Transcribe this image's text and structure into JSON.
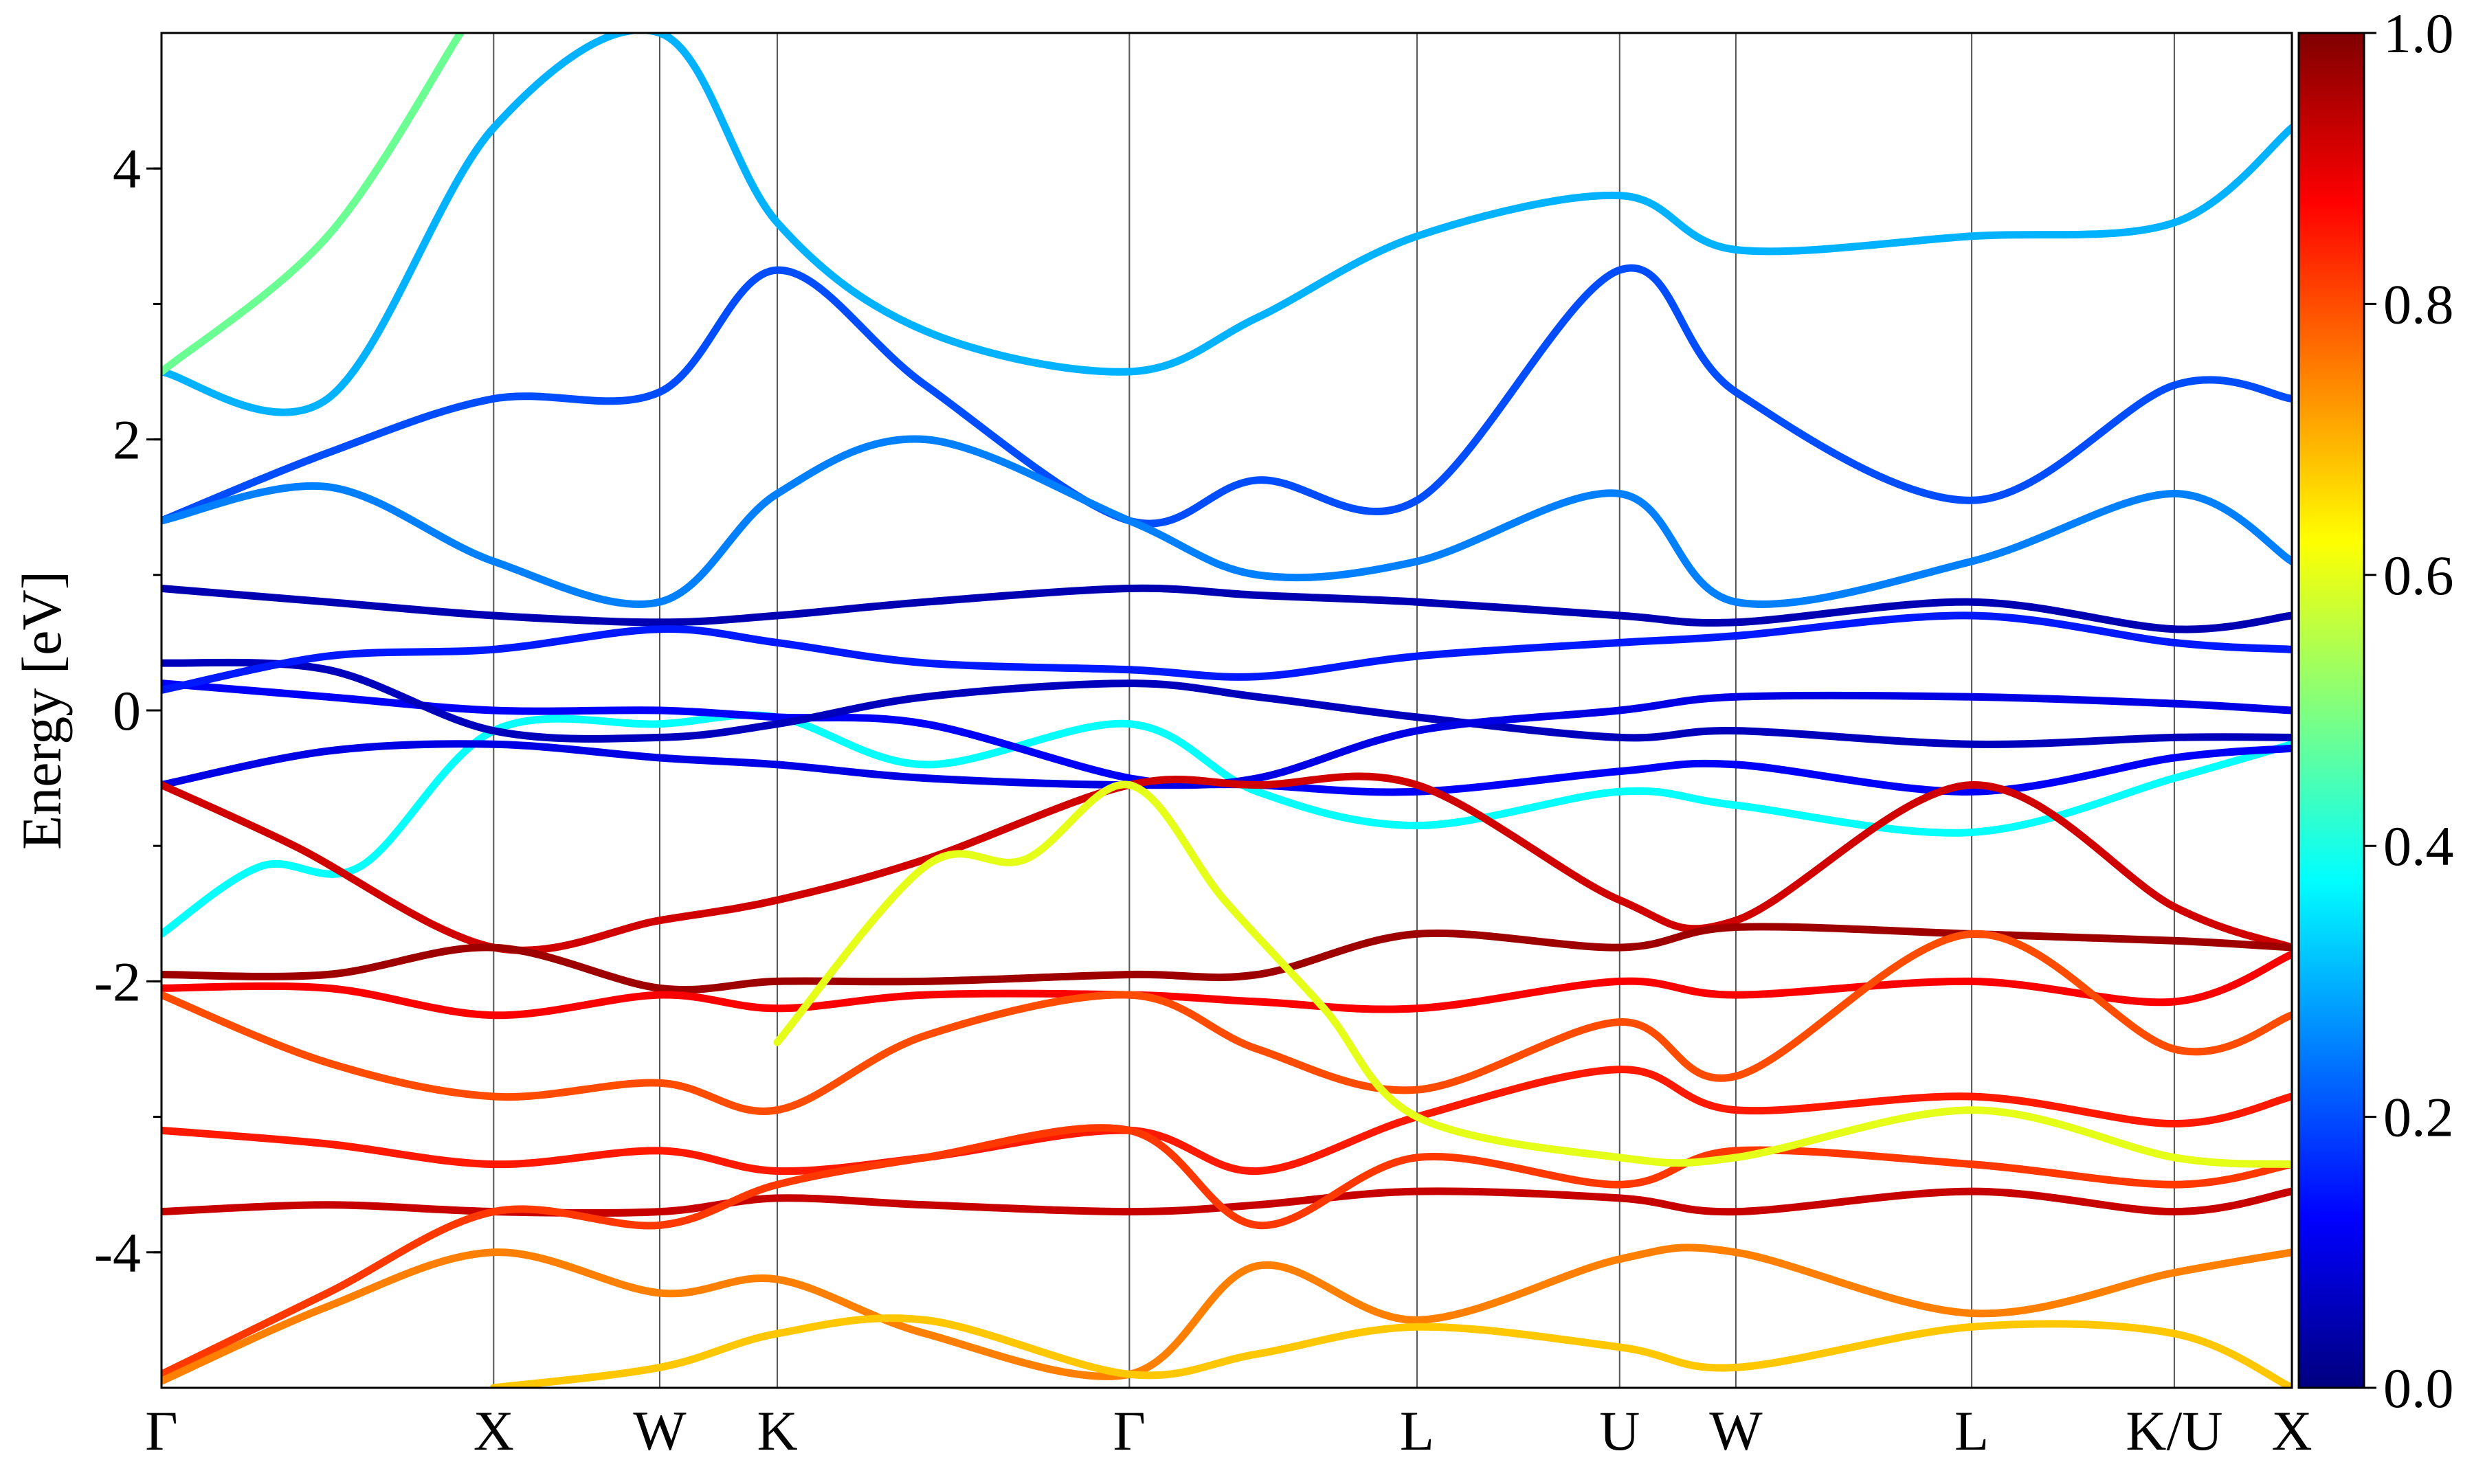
{
  "chart_data": {
    "type": "line",
    "title": "",
    "xlabel": "",
    "ylabel": "Energy [eV]",
    "ylim": [
      -5,
      5
    ],
    "y_ticks": [
      {
        "value": 4,
        "label": "4"
      },
      {
        "value": 2,
        "label": "2"
      },
      {
        "value": 0,
        "label": "0"
      },
      {
        "value": -2,
        "label": "-2"
      },
      {
        "value": -4,
        "label": "-4"
      }
    ],
    "y_minor_ticks": [
      4.0,
      3.0,
      2.0,
      1.0,
      0.0,
      -1.0,
      -2.0,
      -3.0,
      -4.0
    ],
    "kpath": [
      {
        "label": "Γ",
        "x": 0.0
      },
      {
        "label": "X",
        "x": 1.0
      },
      {
        "label": "W",
        "x": 1.5
      },
      {
        "label": "K",
        "x": 1.854
      },
      {
        "label": "Γ",
        "x": 2.914
      },
      {
        "label": "L",
        "x": 3.78
      },
      {
        "label": "U",
        "x": 4.39
      },
      {
        "label": "W",
        "x": 4.74
      },
      {
        "label": "L",
        "x": 5.45
      },
      {
        "label": "K/U",
        "x": 6.06
      },
      {
        "label": "X",
        "x": 6.414
      }
    ],
    "colorbar": {
      "min": 0.0,
      "max": 1.0,
      "colormap": "jet",
      "ticks": [
        {
          "value": 1.0,
          "label": "1.0"
        },
        {
          "value": 0.8,
          "label": "0.8"
        },
        {
          "value": 0.6,
          "label": "0.6"
        },
        {
          "value": 0.4,
          "label": "0.4"
        },
        {
          "value": 0.2,
          "label": "0.2"
        },
        {
          "value": 0.0,
          "label": "0.0"
        }
      ],
      "stops": [
        "#00007f",
        "#0000ff",
        "#007fff",
        "#00ffff",
        "#7fff7f",
        "#ffff00",
        "#ff7f00",
        "#ff0000",
        "#7f0000"
      ]
    },
    "grid": "vertical lines at high-symmetry points",
    "legend": "none",
    "series": [
      {
        "color_value": 0.38,
        "points": [
          [
            0,
            -1.65
          ],
          [
            0.3,
            -1.15
          ],
          [
            0.6,
            -1.15
          ],
          [
            1.0,
            -0.15
          ],
          [
            1.5,
            -0.1
          ],
          [
            1.854,
            -0.05
          ],
          [
            2.3,
            -0.4
          ],
          [
            2.914,
            -0.1
          ],
          [
            3.3,
            -0.6
          ],
          [
            3.78,
            -0.85
          ],
          [
            4.39,
            -0.6
          ],
          [
            4.74,
            -0.7
          ],
          [
            5.45,
            -0.9
          ],
          [
            6.06,
            -0.5
          ],
          [
            6.414,
            -0.25
          ]
        ]
      },
      {
        "color_value": 0.12,
        "points": [
          [
            0,
            0.2
          ],
          [
            0.5,
            0.1
          ],
          [
            1.0,
            0.0
          ],
          [
            1.5,
            0.0
          ],
          [
            1.854,
            -0.05
          ],
          [
            2.3,
            -0.1
          ],
          [
            2.914,
            -0.5
          ],
          [
            3.3,
            -0.55
          ],
          [
            3.78,
            -0.6
          ],
          [
            4.39,
            -0.45
          ],
          [
            4.74,
            -0.4
          ],
          [
            5.45,
            -0.6
          ],
          [
            6.06,
            -0.35
          ],
          [
            6.414,
            -0.28
          ]
        ]
      },
      {
        "color_value": 0.06,
        "points": [
          [
            0,
            0.35
          ],
          [
            0.5,
            0.3
          ],
          [
            1.0,
            -0.15
          ],
          [
            1.5,
            -0.2
          ],
          [
            1.854,
            -0.1
          ],
          [
            2.3,
            0.1
          ],
          [
            2.914,
            0.2
          ],
          [
            3.3,
            0.1
          ],
          [
            3.78,
            -0.05
          ],
          [
            4.39,
            -0.2
          ],
          [
            4.74,
            -0.15
          ],
          [
            5.45,
            -0.25
          ],
          [
            6.06,
            -0.2
          ],
          [
            6.414,
            -0.2
          ]
        ]
      },
      {
        "color_value": 0.05,
        "points": [
          [
            0,
            0.9
          ],
          [
            0.5,
            0.8
          ],
          [
            1.0,
            0.7
          ],
          [
            1.5,
            0.65
          ],
          [
            1.854,
            0.7
          ],
          [
            2.3,
            0.8
          ],
          [
            2.914,
            0.9
          ],
          [
            3.3,
            0.85
          ],
          [
            3.78,
            0.8
          ],
          [
            4.39,
            0.7
          ],
          [
            4.74,
            0.65
          ],
          [
            5.45,
            0.8
          ],
          [
            6.06,
            0.6
          ],
          [
            6.414,
            0.7
          ]
        ]
      },
      {
        "color_value": 0.1,
        "points": [
          [
            0,
            -0.55
          ],
          [
            0.5,
            -0.3
          ],
          [
            1.0,
            -0.25
          ],
          [
            1.5,
            -0.35
          ],
          [
            1.854,
            -0.4
          ],
          [
            2.3,
            -0.5
          ],
          [
            2.914,
            -0.55
          ],
          [
            3.3,
            -0.5
          ],
          [
            3.78,
            -0.15
          ],
          [
            4.39,
            0.0
          ],
          [
            4.74,
            0.1
          ],
          [
            5.45,
            0.1
          ],
          [
            6.06,
            0.05
          ],
          [
            6.414,
            0.0
          ]
        ]
      },
      {
        "color_value": 0.15,
        "points": [
          [
            0,
            0.15
          ],
          [
            0.5,
            0.4
          ],
          [
            1.0,
            0.45
          ],
          [
            1.5,
            0.6
          ],
          [
            1.854,
            0.5
          ],
          [
            2.3,
            0.35
          ],
          [
            2.914,
            0.3
          ],
          [
            3.3,
            0.25
          ],
          [
            3.78,
            0.4
          ],
          [
            4.39,
            0.5
          ],
          [
            4.74,
            0.55
          ],
          [
            5.45,
            0.7
          ],
          [
            6.06,
            0.5
          ],
          [
            6.414,
            0.45
          ]
        ]
      },
      {
        "color_value": 0.3,
        "points": [
          [
            0,
            2.5
          ],
          [
            0.5,
            2.3
          ],
          [
            1.0,
            4.3
          ],
          [
            1.5,
            5.0
          ],
          [
            1.854,
            3.6
          ],
          [
            2.3,
            2.8
          ],
          [
            2.914,
            2.5
          ],
          [
            3.3,
            2.9
          ],
          [
            3.78,
            3.5
          ],
          [
            4.39,
            3.8
          ],
          [
            4.74,
            3.4
          ],
          [
            5.45,
            3.5
          ],
          [
            6.06,
            3.6
          ],
          [
            6.414,
            4.3
          ]
        ]
      },
      {
        "color_value": 0.48,
        "points": [
          [
            0,
            2.5
          ],
          [
            0.5,
            3.5
          ],
          [
            0.9,
            5.0
          ]
        ]
      },
      {
        "color_value": 0.2,
        "points": [
          [
            0,
            1.4
          ],
          [
            0.5,
            1.9
          ],
          [
            1.0,
            2.3
          ],
          [
            1.5,
            2.35
          ],
          [
            1.854,
            3.25
          ],
          [
            2.3,
            2.4
          ],
          [
            2.914,
            1.4
          ],
          [
            3.3,
            1.7
          ],
          [
            3.78,
            1.55
          ],
          [
            4.39,
            3.25
          ],
          [
            4.74,
            2.35
          ],
          [
            5.45,
            1.55
          ],
          [
            6.06,
            2.4
          ],
          [
            6.414,
            2.3
          ]
        ]
      },
      {
        "color_value": 0.25,
        "points": [
          [
            0,
            1.4
          ],
          [
            0.5,
            1.65
          ],
          [
            1.0,
            1.1
          ],
          [
            1.5,
            0.8
          ],
          [
            1.854,
            1.6
          ],
          [
            2.3,
            2.0
          ],
          [
            2.914,
            1.4
          ],
          [
            3.3,
            1.0
          ],
          [
            3.78,
            1.1
          ],
          [
            4.39,
            1.6
          ],
          [
            4.74,
            0.8
          ],
          [
            5.45,
            1.1
          ],
          [
            6.06,
            1.6
          ],
          [
            6.414,
            1.1
          ]
        ]
      },
      {
        "color_value": 0.92,
        "points": [
          [
            0,
            -0.55
          ],
          [
            0.4,
            -1.0
          ],
          [
            1.0,
            -1.75
          ],
          [
            1.5,
            -1.55
          ],
          [
            1.854,
            -1.4
          ],
          [
            2.3,
            -1.1
          ],
          [
            2.914,
            -0.55
          ],
          [
            3.3,
            -0.55
          ],
          [
            3.78,
            -0.55
          ],
          [
            4.39,
            -1.4
          ],
          [
            4.74,
            -1.55
          ],
          [
            5.45,
            -0.55
          ],
          [
            6.06,
            -1.45
          ],
          [
            6.414,
            -1.75
          ]
        ]
      },
      {
        "color_value": 0.97,
        "points": [
          [
            0,
            -1.95
          ],
          [
            0.5,
            -1.95
          ],
          [
            1.0,
            -1.75
          ],
          [
            1.5,
            -2.05
          ],
          [
            1.854,
            -2.0
          ],
          [
            2.3,
            -2.0
          ],
          [
            2.914,
            -1.95
          ],
          [
            3.3,
            -1.95
          ],
          [
            3.78,
            -1.65
          ],
          [
            4.39,
            -1.75
          ],
          [
            4.74,
            -1.6
          ],
          [
            5.45,
            -1.65
          ],
          [
            6.06,
            -1.7
          ],
          [
            6.414,
            -1.75
          ]
        ]
      },
      {
        "color_value": 0.88,
        "points": [
          [
            0,
            -2.05
          ],
          [
            0.5,
            -2.05
          ],
          [
            1.0,
            -2.25
          ],
          [
            1.5,
            -2.1
          ],
          [
            1.854,
            -2.2
          ],
          [
            2.3,
            -2.1
          ],
          [
            2.914,
            -2.1
          ],
          [
            3.3,
            -2.15
          ],
          [
            3.78,
            -2.2
          ],
          [
            4.39,
            -2.0
          ],
          [
            4.74,
            -2.1
          ],
          [
            5.45,
            -2.0
          ],
          [
            6.06,
            -2.15
          ],
          [
            6.414,
            -1.8
          ]
        ]
      },
      {
        "color_value": 0.8,
        "points": [
          [
            0,
            -2.1
          ],
          [
            0.5,
            -2.6
          ],
          [
            1.0,
            -2.85
          ],
          [
            1.5,
            -2.75
          ],
          [
            1.854,
            -2.95
          ],
          [
            2.3,
            -2.4
          ],
          [
            2.914,
            -2.1
          ],
          [
            3.3,
            -2.5
          ],
          [
            3.78,
            -2.8
          ],
          [
            4.39,
            -2.3
          ],
          [
            4.74,
            -2.7
          ],
          [
            5.45,
            -1.65
          ],
          [
            6.06,
            -2.5
          ],
          [
            6.414,
            -2.25
          ]
        ]
      },
      {
        "color_value": 0.85,
        "points": [
          [
            0,
            -3.1
          ],
          [
            0.5,
            -3.2
          ],
          [
            1.0,
            -3.35
          ],
          [
            1.5,
            -3.25
          ],
          [
            1.854,
            -3.4
          ],
          [
            2.3,
            -3.3
          ],
          [
            2.914,
            -3.1
          ],
          [
            3.3,
            -3.4
          ],
          [
            3.78,
            -3.0
          ],
          [
            4.39,
            -2.65
          ],
          [
            4.74,
            -2.95
          ],
          [
            5.45,
            -2.85
          ],
          [
            6.06,
            -3.05
          ],
          [
            6.414,
            -2.85
          ]
        ]
      },
      {
        "color_value": 0.93,
        "points": [
          [
            0,
            -3.7
          ],
          [
            0.5,
            -3.65
          ],
          [
            1.0,
            -3.7
          ],
          [
            1.5,
            -3.7
          ],
          [
            1.854,
            -3.6
          ],
          [
            2.3,
            -3.65
          ],
          [
            2.914,
            -3.7
          ],
          [
            3.3,
            -3.65
          ],
          [
            3.78,
            -3.55
          ],
          [
            4.39,
            -3.6
          ],
          [
            4.74,
            -3.7
          ],
          [
            5.45,
            -3.55
          ],
          [
            6.06,
            -3.7
          ],
          [
            6.414,
            -3.55
          ]
        ]
      },
      {
        "color_value": 0.82,
        "points": [
          [
            0,
            -4.9
          ],
          [
            0.5,
            -4.3
          ],
          [
            1.0,
            -3.7
          ],
          [
            1.5,
            -3.8
          ],
          [
            1.854,
            -3.5
          ],
          [
            2.3,
            -3.3
          ],
          [
            2.914,
            -3.1
          ],
          [
            3.3,
            -3.8
          ],
          [
            3.78,
            -3.3
          ],
          [
            4.39,
            -3.5
          ],
          [
            4.74,
            -3.25
          ],
          [
            5.45,
            -3.35
          ],
          [
            6.06,
            -3.5
          ],
          [
            6.414,
            -3.35
          ]
        ]
      },
      {
        "color_value": 0.75,
        "points": [
          [
            0,
            -4.95
          ],
          [
            0.5,
            -4.4
          ],
          [
            1.0,
            -4.0
          ],
          [
            1.5,
            -4.3
          ],
          [
            1.854,
            -4.2
          ],
          [
            2.3,
            -4.6
          ],
          [
            2.914,
            -4.9
          ],
          [
            3.3,
            -4.1
          ],
          [
            3.78,
            -4.5
          ],
          [
            4.39,
            -4.05
          ],
          [
            4.74,
            -4.0
          ],
          [
            5.45,
            -4.45
          ],
          [
            6.06,
            -4.15
          ],
          [
            6.414,
            -4.0
          ]
        ]
      },
      {
        "color_value": 0.68,
        "points": [
          [
            1.0,
            -5.0
          ],
          [
            1.5,
            -4.85
          ],
          [
            1.854,
            -4.6
          ],
          [
            2.3,
            -4.5
          ],
          [
            2.914,
            -4.9
          ],
          [
            3.3,
            -4.75
          ],
          [
            3.78,
            -4.55
          ],
          [
            4.39,
            -4.7
          ],
          [
            4.74,
            -4.85
          ],
          [
            5.45,
            -4.55
          ],
          [
            6.06,
            -4.6
          ],
          [
            6.414,
            -5.0
          ]
        ]
      },
      {
        "color_value": 0.6,
        "points": [
          [
            1.854,
            -2.45
          ],
          [
            2.3,
            -1.15
          ],
          [
            2.6,
            -1.1
          ],
          [
            2.914,
            -0.55
          ],
          [
            3.2,
            -1.4
          ],
          [
            3.5,
            -2.2
          ],
          [
            3.78,
            -3.0
          ],
          [
            4.39,
            -3.3
          ],
          [
            4.74,
            -3.3
          ],
          [
            5.45,
            -2.95
          ],
          [
            6.06,
            -3.3
          ],
          [
            6.414,
            -3.35
          ]
        ]
      }
    ]
  }
}
